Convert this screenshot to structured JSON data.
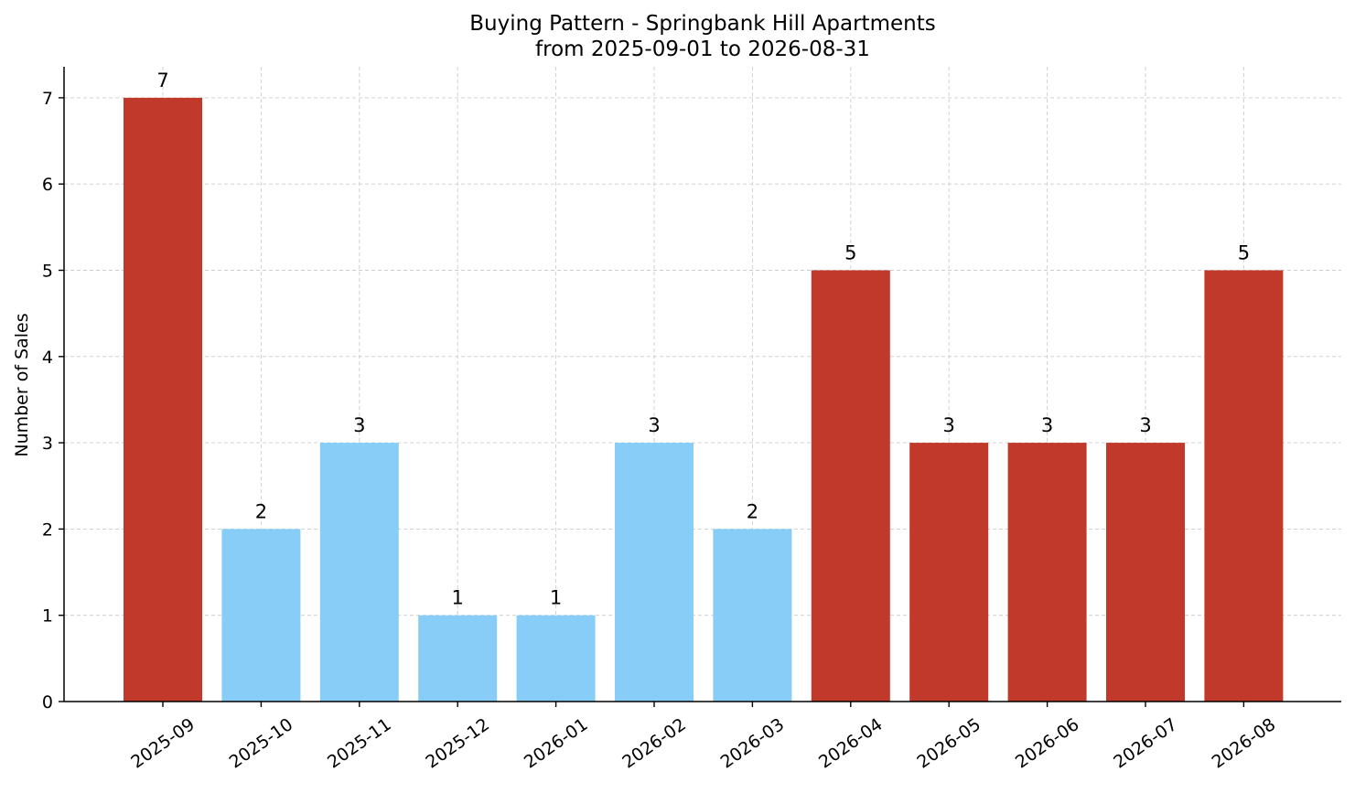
{
  "chart_data": {
    "type": "bar",
    "title": "Buying Pattern - Springbank Hill Apartments",
    "subtitle": "from 2025-09-01 to 2026-08-31",
    "xlabel": "",
    "ylabel": "Number of Sales",
    "categories": [
      "2025-09",
      "2025-10",
      "2025-11",
      "2025-12",
      "2026-01",
      "2026-02",
      "2026-03",
      "2026-04",
      "2026-05",
      "2026-06",
      "2026-07",
      "2026-08"
    ],
    "values": [
      7,
      2,
      3,
      1,
      1,
      3,
      2,
      5,
      3,
      3,
      3,
      5
    ],
    "bar_colors": [
      "#c0392b",
      "#87cdf7",
      "#87cdf7",
      "#87cdf7",
      "#87cdf7",
      "#87cdf7",
      "#87cdf7",
      "#c0392b",
      "#c0392b",
      "#c0392b",
      "#c0392b",
      "#c0392b"
    ],
    "value_labels": [
      "7",
      "2",
      "3",
      "1",
      "1",
      "3",
      "2",
      "5",
      "3",
      "3",
      "3",
      "5"
    ],
    "yticks": [
      0,
      1,
      2,
      3,
      4,
      5,
      6,
      7
    ],
    "ylim": [
      0,
      7.35
    ],
    "grid": true,
    "legend": "none"
  }
}
